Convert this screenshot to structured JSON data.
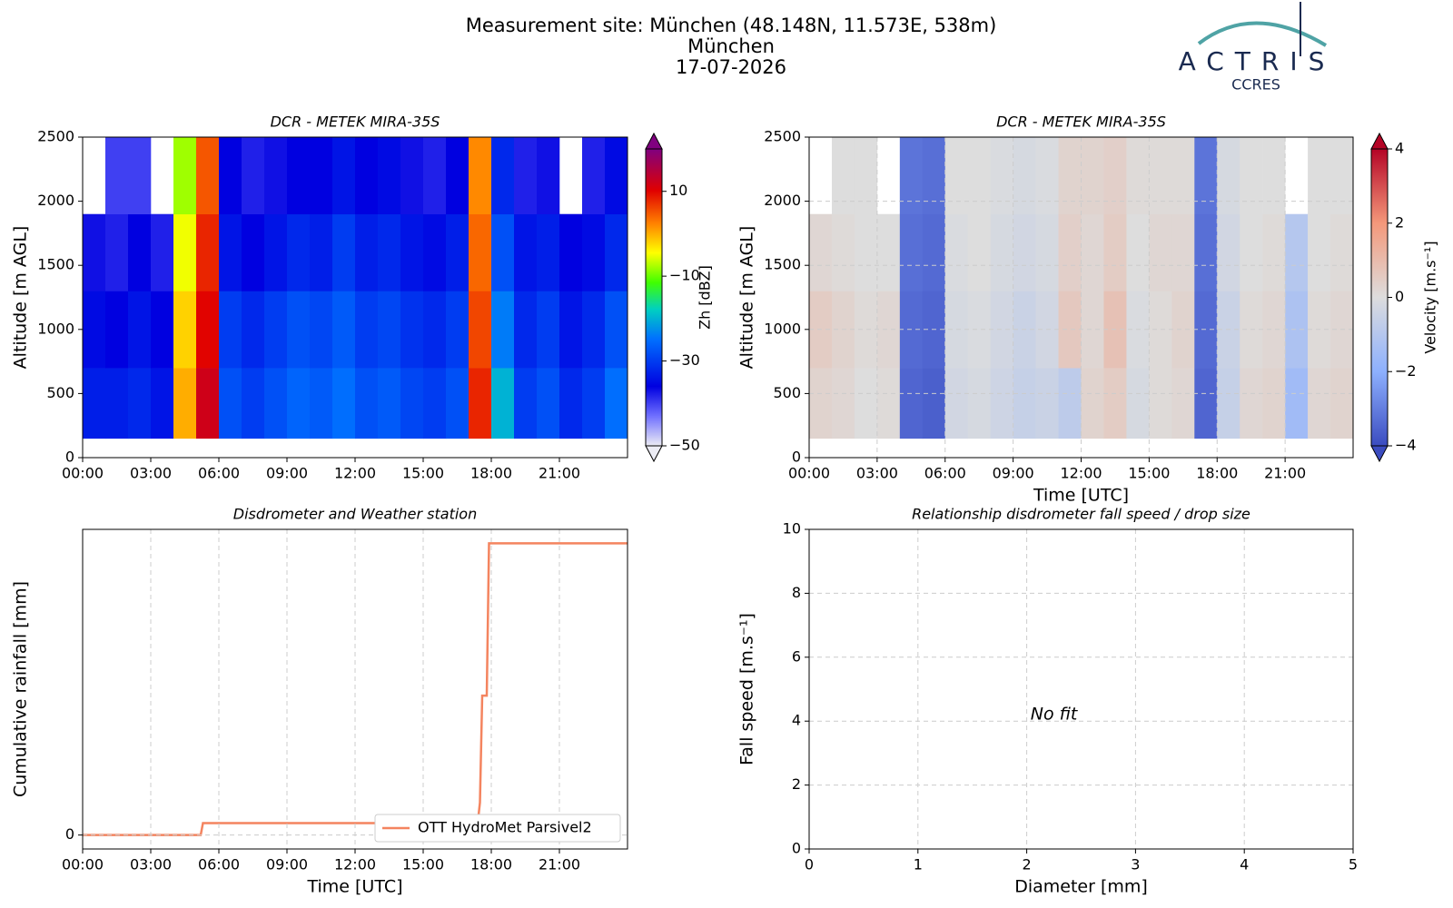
{
  "header": {
    "title": "Measurement site: München (48.148N, 11.573E, 538m)",
    "site": "München",
    "date": "17-07-2026"
  },
  "logo": {
    "name": "ACTRIS",
    "sub": "CCRES"
  },
  "chart_data": [
    {
      "type": "heatmap",
      "title": "DCR - METEK MIRA-35S",
      "ylabel": "Altitude [m AGL]",
      "x_bins": [
        0,
        1,
        2,
        3,
        4,
        5,
        6,
        7,
        8,
        9,
        10,
        11,
        12,
        13,
        14,
        15,
        16,
        17,
        18,
        19,
        20,
        21,
        22,
        23,
        24
      ],
      "y_bins": [
        150,
        700,
        1300,
        1900,
        2500
      ],
      "z": [
        [
          -33,
          -33,
          -32,
          -34,
          0,
          12,
          -28,
          -30,
          -28,
          -26,
          -27,
          -25,
          -28,
          -27,
          -29,
          -30,
          -28,
          8,
          -20,
          -30,
          -28,
          -32,
          -30,
          -25
        ],
        [
          -35,
          -36,
          -34,
          -36,
          -2,
          10,
          -30,
          -32,
          -30,
          -28,
          -29,
          -27,
          -30,
          -29,
          -31,
          -32,
          -30,
          6,
          -24,
          -32,
          -30,
          -34,
          -32,
          -28
        ],
        [
          -37,
          -38,
          -36,
          -38,
          -5,
          8,
          -34,
          -36,
          -34,
          -32,
          -33,
          -30,
          -33,
          -32,
          -34,
          -35,
          -33,
          4,
          -28,
          -34,
          -33,
          -36,
          -35,
          -32
        ],
        [
          null,
          -40,
          -40,
          null,
          -8,
          5,
          -36,
          -38,
          -37,
          -36,
          -36,
          -34,
          -36,
          -35,
          -37,
          -38,
          -36,
          2,
          -32,
          -38,
          -37,
          null,
          -38,
          -35
        ]
      ],
      "xlim": [
        0,
        24
      ],
      "ylim": [
        0,
        2500
      ],
      "xticks": [
        {
          "value": 0,
          "label": "00:00"
        },
        {
          "value": 3,
          "label": "03:00"
        },
        {
          "value": 6,
          "label": "06:00"
        },
        {
          "value": 9,
          "label": "09:00"
        },
        {
          "value": 12,
          "label": "12:00"
        },
        {
          "value": 15,
          "label": "15:00"
        },
        {
          "value": 18,
          "label": "18:00"
        },
        {
          "value": 21,
          "label": "21:00"
        }
      ],
      "yticks": [
        0,
        500,
        1000,
        1500,
        2000,
        2500
      ],
      "grid": false,
      "colorbar": {
        "label": "Zh [dBZ]",
        "colormap": "jet",
        "clim": [
          -50,
          20
        ],
        "ticks": [
          {
            "value": -50,
            "label": "−50"
          },
          {
            "value": -30,
            "label": "−30"
          },
          {
            "value": -10,
            "label": "−10"
          },
          10
        ]
      }
    },
    {
      "type": "heatmap",
      "title": "DCR - METEK MIRA-35S",
      "ylabel": "Altitude [m AGL]",
      "xlabel": "Time [UTC]",
      "x_bins": [
        0,
        1,
        2,
        3,
        4,
        5,
        6,
        7,
        8,
        9,
        10,
        11,
        12,
        13,
        14,
        15,
        16,
        17,
        18,
        19,
        20,
        21,
        22,
        23,
        24
      ],
      "y_bins": [
        150,
        700,
        1300,
        1900,
        2500
      ],
      "z": [
        [
          0.3,
          0.2,
          0,
          0.1,
          -3.5,
          -3.6,
          -0.3,
          -0.2,
          -0.4,
          -0.6,
          -0.5,
          -0.8,
          0.3,
          0.5,
          -0.2,
          0.1,
          0.2,
          -3.5,
          -0.6,
          0.2,
          0.3,
          -1.5,
          0.2,
          0.3
        ],
        [
          0.5,
          0.3,
          0.1,
          0.2,
          -3.4,
          -3.5,
          -0.2,
          -0.1,
          -0.3,
          -0.5,
          -0.3,
          0.6,
          0.2,
          0.8,
          -0.1,
          0.1,
          0.3,
          -3.4,
          -0.5,
          0.1,
          0.2,
          -1.2,
          0.1,
          0.2
        ],
        [
          0.2,
          0.1,
          0,
          0,
          -3.3,
          -3.4,
          -0.1,
          0,
          -0.2,
          -0.3,
          -0.2,
          0.4,
          0.2,
          0.5,
          0,
          0.2,
          0.2,
          -3.3,
          -0.3,
          0,
          0.1,
          -1,
          0,
          0.1
        ],
        [
          null,
          0,
          0,
          null,
          -3.2,
          -3.3,
          0,
          0,
          -0.1,
          -0.2,
          -0.1,
          0.3,
          0.3,
          0.4,
          0.1,
          0.1,
          0.1,
          -3.2,
          -0.2,
          0,
          0,
          null,
          0,
          0
        ]
      ],
      "xlim": [
        0,
        24
      ],
      "ylim": [
        0,
        2500
      ],
      "xticks": [
        {
          "value": 0,
          "label": "00:00"
        },
        {
          "value": 3,
          "label": "03:00"
        },
        {
          "value": 6,
          "label": "06:00"
        },
        {
          "value": 9,
          "label": "09:00"
        },
        {
          "value": 12,
          "label": "12:00"
        },
        {
          "value": 15,
          "label": "15:00"
        },
        {
          "value": 18,
          "label": "18:00"
        },
        {
          "value": 21,
          "label": "21:00"
        }
      ],
      "yticks": [
        0,
        500,
        1000,
        1500,
        2000,
        2500
      ],
      "grid": true,
      "colorbar": {
        "label": "Velocity [m.s⁻¹]",
        "colormap": "coolwarm",
        "clim": [
          -4,
          4
        ],
        "ticks": [
          {
            "value": -4,
            "label": "−4"
          },
          {
            "value": -2,
            "label": "−2"
          },
          0,
          2,
          4
        ]
      }
    },
    {
      "type": "line",
      "title": "Disdrometer and Weather station",
      "xlabel": "Time [UTC]",
      "ylabel": "Cumulative rainfall [mm]",
      "x": [
        0,
        5.2,
        5.3,
        17.4,
        17.5,
        17.6,
        17.8,
        17.9,
        24
      ],
      "series": [
        {
          "name": "OTT HydroMet Parsivel2",
          "color": "#f4845f",
          "values": [
            0,
            0,
            0.037,
            0.037,
            0.1,
            0.43,
            0.43,
            0.9,
            0.9
          ]
        }
      ],
      "xlim": [
        0,
        24
      ],
      "ylim": [
        -0.043,
        0.943
      ],
      "xticks": [
        {
          "value": 0,
          "label": "00:00"
        },
        {
          "value": 3,
          "label": "03:00"
        },
        {
          "value": 6,
          "label": "06:00"
        },
        {
          "value": 9,
          "label": "09:00"
        },
        {
          "value": 12,
          "label": "12:00"
        },
        {
          "value": 15,
          "label": "15:00"
        },
        {
          "value": 18,
          "label": "18:00"
        },
        {
          "value": 21,
          "label": "21:00"
        }
      ],
      "yticks": [
        0
      ],
      "grid": true,
      "legend": "lower right"
    },
    {
      "type": "scatter",
      "title": "Relationship disdrometer fall speed / drop size",
      "xlabel": "Diameter [mm]",
      "ylabel": "Fall speed [m.s⁻¹]",
      "annotation": "No fit",
      "xlim": [
        0,
        5
      ],
      "ylim": [
        0,
        10
      ],
      "xticks": [
        0,
        1,
        2,
        3,
        4,
        5
      ],
      "yticks": [
        0,
        2,
        4,
        6,
        8,
        10
      ],
      "grid": true
    }
  ]
}
